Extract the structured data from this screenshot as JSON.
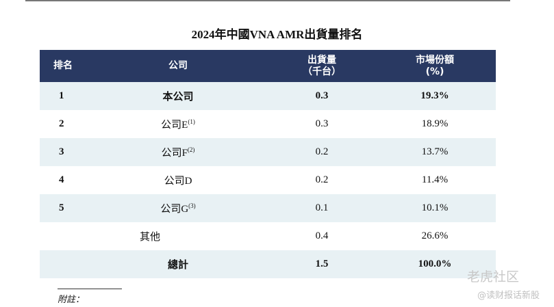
{
  "title": "2024年中國VNA AMR出貨量排名",
  "headers": {
    "rank": "排名",
    "company": "公司",
    "shipment": "出貨量\n（千台）",
    "share": "市場份額\n(%)"
  },
  "rows": [
    {
      "rank": "1",
      "company": "本公司",
      "note": "",
      "shipment": "0.3",
      "share": "19.3%",
      "bold": true
    },
    {
      "rank": "2",
      "company": "公司E",
      "note": "(1)",
      "shipment": "0.3",
      "share": "18.9%"
    },
    {
      "rank": "3",
      "company": "公司F",
      "note": "(2)",
      "shipment": "0.2",
      "share": "13.7%"
    },
    {
      "rank": "4",
      "company": "公司D",
      "note": "",
      "shipment": "0.2",
      "share": "11.4%"
    },
    {
      "rank": "5",
      "company": "公司G",
      "note": "(3)",
      "shipment": "0.1",
      "share": "10.1%"
    },
    {
      "rank": "",
      "company": "其他",
      "note": "",
      "shipment": "0.4",
      "share": "26.6%"
    },
    {
      "rank": "",
      "company": "總計",
      "note": "",
      "shipment": "1.5",
      "share": "100.0%",
      "bold": true
    }
  ],
  "footnote": "附註：",
  "watermark": {
    "line1": "老虎社区",
    "line2": "@读财报话新股"
  },
  "colors": {
    "header_bg": "#293962",
    "row_shade": "#e8f1f4"
  }
}
